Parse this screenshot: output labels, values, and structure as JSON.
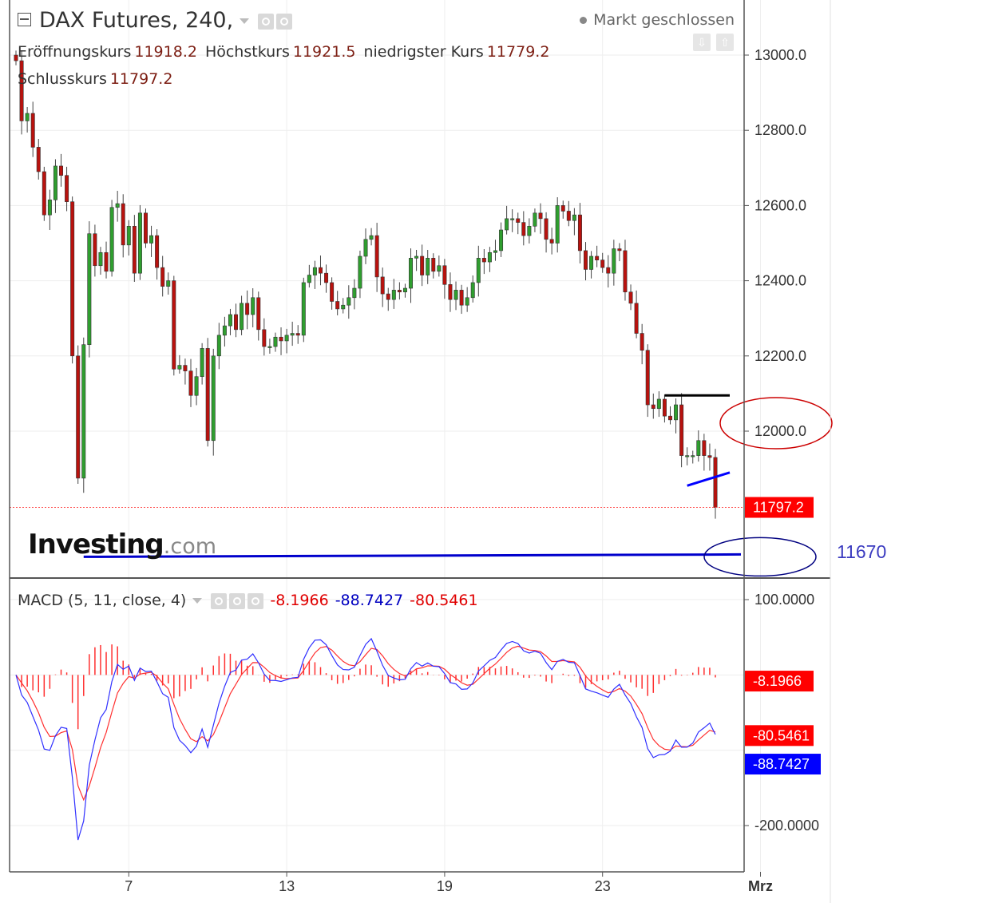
{
  "header": {
    "symbol": "DAX Futures, 240,",
    "market_status": "Markt geschlossen",
    "ohlc": [
      {
        "label": "Eröffnungskurs",
        "value": "11918.2"
      },
      {
        "label": "Höchstkurs",
        "value": "11921.5"
      },
      {
        "label": "niedrigster Kurs",
        "value": "11779.2"
      },
      {
        "label": "Schlusskurs",
        "value": "11797.2"
      }
    ]
  },
  "macd_legend": {
    "name": "MACD (5, 11, close, 4)",
    "hist": "-8.1966",
    "macd": "-88.7427",
    "signal": "-80.5461"
  },
  "logo": {
    "brand": "Investing",
    "suffix": ".com"
  },
  "annotation_label": "11670",
  "icons": [
    "collapse-icon",
    "chevron-down-icon",
    "eye-icon",
    "gear-icon",
    "close-icon",
    "arrow-down-icon",
    "arrow-up-icon"
  ],
  "colors": {
    "up": "#2f9e2f",
    "down": "#b8120e",
    "macd": "#3030ff",
    "signal": "#ff3030",
    "last_price_tag": "#ff0000",
    "macd_tag": "#0000ff"
  },
  "chart_data": [
    {
      "type": "candlestick",
      "title": "DAX Futures, 240,",
      "ylim": [
        11600,
        13100
      ],
      "y_ticks": [
        13000.0,
        12800.0,
        12600.0,
        12400.0,
        12200.0,
        12000.0
      ],
      "y_tick_labels": [
        "13000.0",
        "12800.0",
        "12600.0",
        "12400.0",
        "12200.0",
        "12000.0"
      ],
      "x_tick_labels": [
        "7",
        "13",
        "19",
        "23",
        "Mrz"
      ],
      "x_tick_bar_index": [
        20,
        48,
        76,
        104,
        132
      ],
      "grid": true,
      "last_price": 11797.2,
      "last_price_label": "11797.2",
      "close_series": [
        12985,
        12825,
        12845,
        12755,
        12690,
        12575,
        12615,
        12705,
        12680,
        12610,
        12200,
        11875,
        12230,
        12525,
        12440,
        12475,
        12425,
        12595,
        12605,
        12495,
        12545,
        12420,
        12580,
        12500,
        12520,
        12435,
        12385,
        12400,
        12165,
        12175,
        12160,
        12095,
        12145,
        12220,
        11975,
        12200,
        12255,
        12280,
        12310,
        12270,
        12340,
        12310,
        12355,
        12270,
        12225,
        12225,
        12250,
        12240,
        12255,
        12260,
        12255,
        12395,
        12415,
        12435,
        12420,
        12395,
        12345,
        12325,
        12335,
        12355,
        12380,
        12465,
        12510,
        12520,
        12410,
        12365,
        12350,
        12375,
        12370,
        12380,
        12460,
        12465,
        12415,
        12460,
        12425,
        12440,
        12390,
        12350,
        12375,
        12335,
        12355,
        12395,
        12460,
        12450,
        12475,
        12480,
        12535,
        12565,
        12565,
        12555,
        12520,
        12545,
        12580,
        12565,
        12510,
        12500,
        12600,
        12585,
        12560,
        12575,
        12480,
        12430,
        12465,
        12455,
        12435,
        12420,
        12485,
        12480,
        12370,
        12340,
        12260,
        12215,
        12070,
        12060,
        12085,
        12040,
        12030,
        12070,
        11935,
        11935,
        11935,
        11975,
        11935,
        11930,
        11797.2
      ],
      "annotations": [
        {
          "kind": "horizontal-line",
          "price": 12095,
          "color": "#000000"
        },
        {
          "kind": "trend-line",
          "from_price": 11855,
          "to_price": 11890,
          "color": "#0000ff"
        },
        {
          "kind": "horizontal-line",
          "price": 11670,
          "label": "11670",
          "color": "#0000cc"
        },
        {
          "kind": "ellipse",
          "around_price": 12000,
          "color": "#cc0000"
        },
        {
          "kind": "ellipse",
          "around_price": 11670,
          "color": "#000080"
        }
      ]
    },
    {
      "type": "line",
      "title": "MACD (5, 11, close, 4)",
      "ylim": [
        -250,
        110
      ],
      "y_ticks": [
        100,
        -200
      ],
      "y_tick_labels": [
        "100.0000",
        "-200.0000"
      ],
      "series": [
        {
          "name": "MACD",
          "color": "#3030ff",
          "last": -88.7427,
          "last_label": "-88.7427"
        },
        {
          "name": "Signal",
          "color": "#ff3030",
          "last": -80.5461,
          "last_label": "-80.5461"
        },
        {
          "name": "Histogram",
          "color": "#ff3030",
          "last": -8.1966,
          "last_label": "-8.1966"
        }
      ]
    }
  ]
}
